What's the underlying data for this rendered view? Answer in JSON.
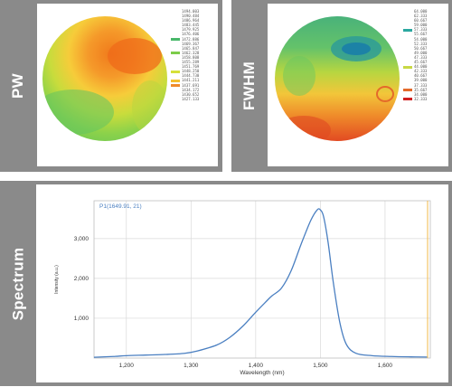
{
  "panels": {
    "pw": {
      "label": "PW"
    },
    "fwhm": {
      "label": "FWHM"
    },
    "spectrum": {
      "label": "Spectrum"
    }
  },
  "pw_legend": [
    "1494.003",
    "1490.484",
    "1486.964",
    "1483.445",
    "1479.925",
    "1476.406",
    "1472.886",
    "1469.367",
    "1465.847",
    "1462.328",
    "1458.808",
    "1455.289",
    "1451.769",
    "1448.250",
    "1444.730",
    "1441.211",
    "1437.691",
    "1434.172",
    "1430.652",
    "1427.133"
  ],
  "fwhm_legend": [
    "64.000",
    "62.333",
    "60.667",
    "59.000",
    "57.333",
    "55.667",
    "54.000",
    "52.333",
    "50.667",
    "49.000",
    "47.333",
    "45.667",
    "44.000",
    "42.333",
    "40.667",
    "39.000",
    "37.333",
    "35.667",
    "34.000",
    "32.333"
  ],
  "chart_data": {
    "type": "line",
    "annotation": "P1(1649.91, 21)",
    "xlabel": "Wavelength (nm)",
    "ylabel": "Intensity (a.u.)",
    "xlim": [
      1150,
      1670
    ],
    "ylim": [
      0,
      3950
    ],
    "xticks": [
      "1,200",
      "1,300",
      "1,400",
      "1,500",
      "1,600"
    ],
    "yticks": [
      "1,000",
      "2,000",
      "3,000"
    ],
    "grid": true,
    "series": [
      {
        "color": "#4a7fc1",
        "x": [
          1150,
          1180,
          1200,
          1230,
          1260,
          1290,
          1310,
          1340,
          1360,
          1380,
          1400,
          1415,
          1425,
          1440,
          1455,
          1470,
          1485,
          1495,
          1500,
          1505,
          1512,
          1520,
          1530,
          1540,
          1555,
          1580,
          1610,
          1640,
          1665
        ],
        "y": [
          20,
          40,
          60,
          75,
          90,
          120,
          180,
          330,
          520,
          800,
          1150,
          1400,
          1560,
          1760,
          2200,
          2850,
          3450,
          3720,
          3720,
          3550,
          2900,
          1900,
          900,
          350,
          120,
          60,
          40,
          30,
          25
        ]
      }
    ]
  }
}
